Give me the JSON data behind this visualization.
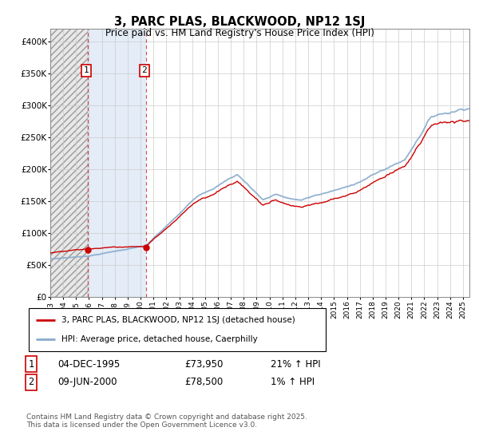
{
  "title": "3, PARC PLAS, BLACKWOOD, NP12 1SJ",
  "subtitle": "Price paid vs. HM Land Registry's House Price Index (HPI)",
  "ylim": [
    0,
    420000
  ],
  "xlim_start": 1993.0,
  "xlim_end": 2025.5,
  "legend_line1": "3, PARC PLAS, BLACKWOOD, NP12 1SJ (detached house)",
  "legend_line2": "HPI: Average price, detached house, Caerphilly",
  "transaction1_date": "04-DEC-1995",
  "transaction1_price": "£73,950",
  "transaction1_hpi": "21% ↑ HPI",
  "transaction2_date": "09-JUN-2000",
  "transaction2_price": "£78,500",
  "transaction2_hpi": "1% ↑ HPI",
  "footnote": "Contains HM Land Registry data © Crown copyright and database right 2025.\nThis data is licensed under the Open Government Licence v3.0.",
  "line_color_property": "#cc0000",
  "line_color_hpi": "#88aacc",
  "grid_color": "#cccccc",
  "transaction1_x": 1995.92,
  "transaction2_x": 2000.44,
  "hatch_end": 1995.92,
  "blue_bg_start": 1995.92,
  "blue_bg_end": 2000.44
}
